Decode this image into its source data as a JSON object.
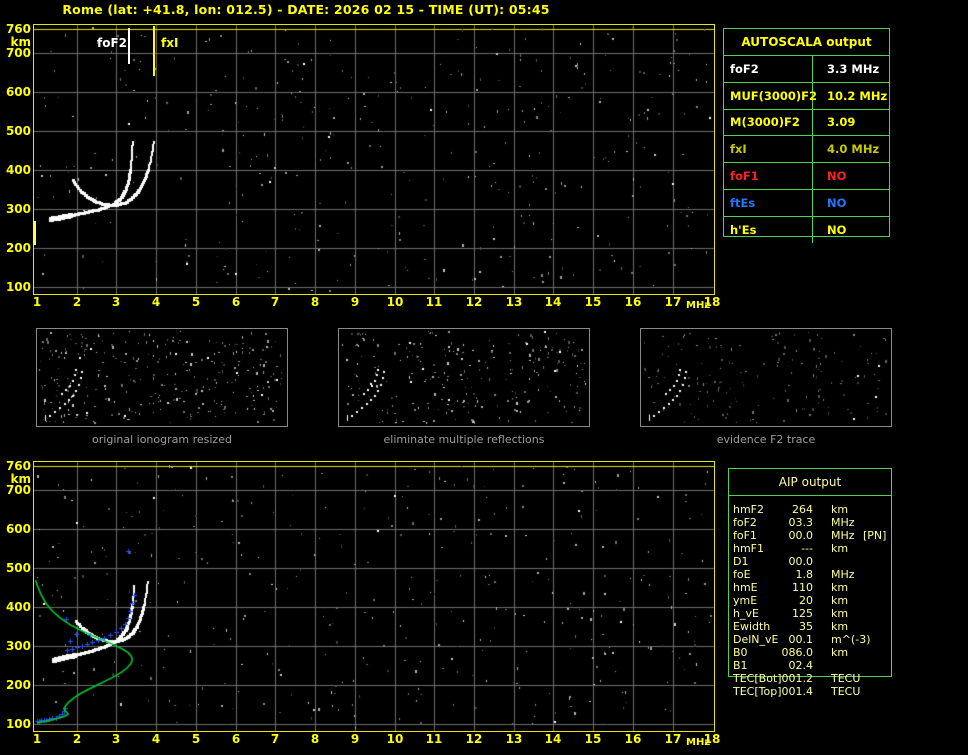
{
  "header": {
    "title": "Rome (lat: +41.8, lon: 012.5) - DATE: 2026 02 15 - TIME (UT): 05:45"
  },
  "colors": {
    "accent_yellow": "#FFFF00",
    "pale_yellow": "#FFFF9E",
    "table_border_green": "#4ED34E",
    "profile_green": "#00C832",
    "marker_blue": "#2952FF",
    "trace_white": "#FFFFFF",
    "grid_gray": "#6E6E6E",
    "caption_gray": "#9C9C9C",
    "red": "#FF2020",
    "blue": "#1E78FF",
    "olive": "#C9C900"
  },
  "autoscala_table": {
    "title": "AUTOSCALA output",
    "rows": [
      {
        "label": "foF2",
        "value": "3.3 MHz",
        "color": "white"
      },
      {
        "label": "MUF(3000)F2",
        "value": "10.2 MHz",
        "color": "yellow"
      },
      {
        "label": "M(3000)F2",
        "value": "3.09",
        "color": "yellow"
      },
      {
        "label": "fxI",
        "value": "4.0 MHz",
        "color": "olive"
      },
      {
        "label": "foF1",
        "value": "NO",
        "color": "red"
      },
      {
        "label": "ftEs",
        "value": "NO",
        "color": "blue"
      },
      {
        "label": "h'Es",
        "value": "NO",
        "color": "yellow"
      }
    ]
  },
  "aip_table": {
    "title": "AIP output",
    "rows": [
      {
        "label": "hmF2",
        "value": "264",
        "unit": "km",
        "extra": ""
      },
      {
        "label": "foF2",
        "value": "03.3",
        "unit": "MHz",
        "extra": ""
      },
      {
        "label": "foF1",
        "value": "00.0",
        "unit": "MHz",
        "extra": "[PN]"
      },
      {
        "label": "hmF1",
        "value": "---",
        "unit": "km",
        "extra": ""
      },
      {
        "label": "D1",
        "value": "00.0",
        "unit": "",
        "extra": ""
      },
      {
        "label": "foE",
        "value": "1.8",
        "unit": "MHz",
        "extra": ""
      },
      {
        "label": "hmE",
        "value": "110",
        "unit": "km",
        "extra": ""
      },
      {
        "label": "ymE",
        "value": "20",
        "unit": "km",
        "extra": ""
      },
      {
        "label": "h_vE",
        "value": "125",
        "unit": "km",
        "extra": ""
      },
      {
        "label": "Ewidth",
        "value": "35",
        "unit": "km",
        "extra": ""
      },
      {
        "label": "DelN_vE",
        "value": "00.1",
        "unit": "m^(-3)",
        "extra": ""
      },
      {
        "label": "B0",
        "value": "086.0",
        "unit": "km",
        "extra": ""
      },
      {
        "label": "B1",
        "value": "02.4",
        "unit": "",
        "extra": ""
      },
      {
        "label": "TEC[Bot]",
        "value": "001.2",
        "unit": "TECU",
        "extra": ""
      },
      {
        "label": "TEC[Top]",
        "value": "001.4",
        "unit": "TECU",
        "extra": ""
      }
    ]
  },
  "thumbnails": [
    {
      "caption": "original ionogram resized"
    },
    {
      "caption": "eliminate multiple reflections"
    },
    {
      "caption": "evidence F2 trace"
    }
  ],
  "chart_data": {
    "type": "scatter",
    "title": "Rome ionogram 2026-02-15 05:45 UT",
    "x_axis": {
      "unit": "MHz",
      "range": [
        1,
        18
      ],
      "ticks": [
        1,
        2,
        3,
        4,
        5,
        6,
        7,
        8,
        9,
        10,
        11,
        12,
        13,
        14,
        15,
        16,
        17,
        18
      ]
    },
    "y_axis": {
      "unit": "km",
      "range": [
        85,
        775
      ],
      "ticks": [
        760,
        700,
        600,
        500,
        400,
        300,
        200,
        100
      ]
    },
    "grid": true,
    "top_plot": {
      "foF2_marker": {
        "label": "foF2",
        "freq_mhz": 3.3
      },
      "fxI_marker": {
        "label": "fxI",
        "freq_mhz": 4.0
      },
      "hF_axis_bar_km": [
        215,
        275
      ],
      "o_trace": [
        [
          1.38,
          272
        ],
        [
          1.6,
          276
        ],
        [
          1.85,
          281
        ],
        [
          2.1,
          286
        ],
        [
          2.35,
          291
        ],
        [
          2.6,
          297
        ],
        [
          2.8,
          304
        ],
        [
          2.95,
          311
        ],
        [
          3.08,
          320
        ],
        [
          3.18,
          332
        ],
        [
          3.26,
          348
        ],
        [
          3.32,
          368
        ],
        [
          3.36,
          392
        ],
        [
          3.39,
          420
        ],
        [
          3.41,
          448
        ],
        [
          3.42,
          470
        ]
      ],
      "x_trace": [
        [
          1.92,
          372
        ],
        [
          2.02,
          356
        ],
        [
          2.15,
          341
        ],
        [
          2.3,
          329
        ],
        [
          2.48,
          318
        ],
        [
          2.68,
          311
        ],
        [
          2.9,
          307
        ],
        [
          3.1,
          309
        ],
        [
          3.28,
          316
        ],
        [
          3.44,
          328
        ],
        [
          3.58,
          345
        ],
        [
          3.7,
          366
        ],
        [
          3.8,
          392
        ],
        [
          3.87,
          420
        ],
        [
          3.92,
          448
        ],
        [
          3.95,
          468
        ]
      ]
    },
    "bottom_plot": {
      "o_trace": [
        [
          1.45,
          262
        ],
        [
          1.7,
          268
        ],
        [
          1.95,
          274
        ],
        [
          2.2,
          280
        ],
        [
          2.45,
          287
        ],
        [
          2.7,
          295
        ],
        [
          2.9,
          304
        ],
        [
          3.05,
          314
        ],
        [
          3.18,
          327
        ],
        [
          3.28,
          344
        ],
        [
          3.35,
          366
        ],
        [
          3.4,
          392
        ],
        [
          3.44,
          424
        ],
        [
          3.46,
          452
        ]
      ],
      "x_trace": [
        [
          2.0,
          362
        ],
        [
          2.12,
          348
        ],
        [
          2.28,
          334
        ],
        [
          2.45,
          323
        ],
        [
          2.65,
          314
        ],
        [
          2.85,
          309
        ],
        [
          3.05,
          310
        ],
        [
          3.25,
          317
        ],
        [
          3.42,
          330
        ],
        [
          3.55,
          350
        ],
        [
          3.65,
          376
        ],
        [
          3.72,
          406
        ],
        [
          3.77,
          436
        ],
        [
          3.8,
          460
        ]
      ],
      "profile_green": [
        [
          0.96,
          468
        ],
        [
          1.02,
          452
        ],
        [
          1.1,
          432
        ],
        [
          1.22,
          410
        ],
        [
          1.38,
          390
        ],
        [
          1.58,
          372
        ],
        [
          1.82,
          355
        ],
        [
          2.1,
          340
        ],
        [
          2.4,
          326
        ],
        [
          2.7,
          313
        ],
        [
          2.95,
          302
        ],
        [
          3.15,
          292
        ],
        [
          3.3,
          282
        ],
        [
          3.38,
          272
        ],
        [
          3.4,
          264
        ],
        [
          3.36,
          254
        ],
        [
          3.27,
          244
        ],
        [
          3.13,
          233
        ],
        [
          2.95,
          222
        ],
        [
          2.74,
          211
        ],
        [
          2.52,
          200
        ],
        [
          2.3,
          189
        ],
        [
          2.1,
          178
        ],
        [
          1.93,
          167
        ],
        [
          1.8,
          156
        ],
        [
          1.72,
          147
        ],
        [
          1.68,
          140
        ],
        [
          1.7,
          134
        ],
        [
          1.76,
          129
        ],
        [
          1.78,
          125
        ],
        [
          1.7,
          120
        ],
        [
          1.58,
          116
        ],
        [
          1.44,
          112
        ],
        [
          1.28,
          108
        ],
        [
          1.12,
          105
        ],
        [
          1.0,
          103
        ]
      ],
      "blue_markers": [
        [
          1.0,
          106
        ],
        [
          1.06,
          107
        ],
        [
          1.12,
          108
        ],
        [
          1.18,
          109
        ],
        [
          1.25,
          110
        ],
        [
          1.32,
          111
        ],
        [
          1.4,
          113
        ],
        [
          1.48,
          115
        ],
        [
          1.56,
          118
        ],
        [
          1.63,
          124
        ],
        [
          1.68,
          131
        ],
        [
          1.72,
          139
        ],
        [
          1.78,
          287
        ],
        [
          1.9,
          291
        ],
        [
          2.02,
          295
        ],
        [
          2.14,
          299
        ],
        [
          2.26,
          303
        ],
        [
          2.4,
          308
        ],
        [
          2.55,
          314
        ],
        [
          2.7,
          320
        ],
        [
          2.85,
          327
        ],
        [
          3.0,
          335
        ],
        [
          3.12,
          344
        ],
        [
          3.22,
          356
        ],
        [
          3.3,
          370
        ],
        [
          3.36,
          388
        ],
        [
          3.41,
          408
        ],
        [
          3.45,
          430
        ],
        [
          3.3,
          543
        ],
        [
          1.73,
          368
        ],
        [
          2.0,
          330
        ],
        [
          1.85,
          310
        ],
        [
          2.35,
          326
        ]
      ]
    }
  }
}
